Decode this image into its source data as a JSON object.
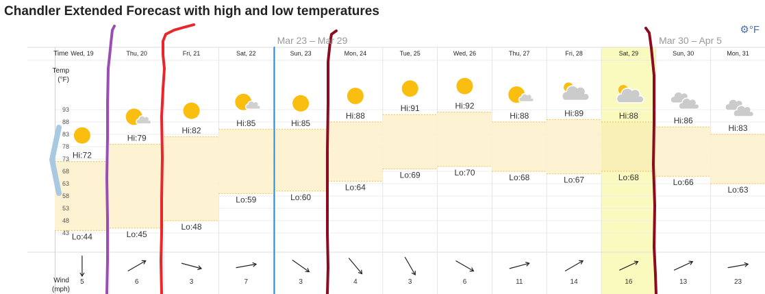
{
  "title": "Chandler Extended Forecast with high and low temperatures",
  "units_toggle": {
    "icon": "gear-icon",
    "label": "°F"
  },
  "side_arrow_icon": "chevron-left-icon",
  "week_labels": [
    "Mar 23 – Mar 29",
    "Mar 30 – Apr 5"
  ],
  "row_labels": {
    "time": "Time",
    "temp": "Temp",
    "temp_unit": "(°F)",
    "wind": "Wind",
    "wind_unit": "(mph)"
  },
  "colors": {
    "band": "#fdf2d0",
    "band_line": "#f0c040",
    "highlight": "#fafabf",
    "sun": "#f9be10",
    "cloud": "#c8c8c8",
    "purple_line": "#9b4db3",
    "red_line": "#e8262b",
    "blue_line": "#2d8ac9",
    "maroon_line": "#8a0c1e"
  },
  "chart_data": {
    "type": "area",
    "title": "Chandler Extended Forecast with high and low temperatures",
    "ylabel": "Temp (°F)",
    "ylim": [
      38,
      98
    ],
    "y_ticks": [
      93,
      88,
      83,
      78,
      73,
      68,
      63,
      58,
      53,
      48,
      43
    ],
    "highlighted_day": "Sat, 29",
    "days": [
      {
        "label": "Wed, 19",
        "hi": 72,
        "lo": 44,
        "hi_label": "Hi:72",
        "lo_label": "Lo:44",
        "icon": "sun-icon",
        "wind_dir": 180,
        "wind_speed": "5"
      },
      {
        "label": "Thu, 20",
        "hi": 79,
        "lo": 45,
        "hi_label": "Hi:79",
        "lo_label": "Lo:45",
        "icon": "sun-cloud-icon",
        "wind_dir": 60,
        "wind_speed": "6"
      },
      {
        "label": "Fri, 21",
        "hi": 82,
        "lo": 48,
        "hi_label": "Hi:82",
        "lo_label": "Lo:48",
        "icon": "sun-icon",
        "wind_dir": 105,
        "wind_speed": "3"
      },
      {
        "label": "Sat, 22",
        "hi": 85,
        "lo": 59,
        "hi_label": "Hi:85",
        "lo_label": "Lo:59",
        "icon": "sun-cloud-icon",
        "wind_dir": 80,
        "wind_speed": "7"
      },
      {
        "label": "Sun, 23",
        "hi": 85,
        "lo": 60,
        "hi_label": "Hi:85",
        "lo_label": "Lo:60",
        "icon": "sun-icon",
        "wind_dir": 125,
        "wind_speed": "3"
      },
      {
        "label": "Mon, 24",
        "hi": 88,
        "lo": 64,
        "hi_label": "Hi:88",
        "lo_label": "Lo:64",
        "icon": "sun-icon",
        "wind_dir": 140,
        "wind_speed": "4"
      },
      {
        "label": "Tue, 25",
        "hi": 91,
        "lo": 69,
        "hi_label": "Hi:91",
        "lo_label": "Lo:69",
        "icon": "sun-icon",
        "wind_dir": 150,
        "wind_speed": "3"
      },
      {
        "label": "Wed, 26",
        "hi": 92,
        "lo": 70,
        "hi_label": "Hi:92",
        "lo_label": "Lo:70",
        "icon": "sun-icon",
        "wind_dir": 120,
        "wind_speed": "6"
      },
      {
        "label": "Thu, 27",
        "hi": 88,
        "lo": 68,
        "hi_label": "Hi:88",
        "lo_label": "Lo:68",
        "icon": "sun-cloud-icon",
        "wind_dir": 75,
        "wind_speed": "11"
      },
      {
        "label": "Fri, 28",
        "hi": 89,
        "lo": 67,
        "hi_label": "Hi:89",
        "lo_label": "Lo:67",
        "icon": "cloud-sun-icon",
        "wind_dir": 60,
        "wind_speed": "14"
      },
      {
        "label": "Sat, 29",
        "hi": 88,
        "lo": 68,
        "hi_label": "Hi:88",
        "lo_label": "Lo:68",
        "icon": "cloud-sun-icon",
        "wind_dir": 65,
        "wind_speed": "16"
      },
      {
        "label": "Sun, 30",
        "hi": 86,
        "lo": 66,
        "hi_label": "Hi:86",
        "lo_label": "Lo:66",
        "icon": "cloud-icon",
        "wind_dir": 65,
        "wind_speed": "13"
      },
      {
        "label": "Mon, 31",
        "hi": 83,
        "lo": 63,
        "hi_label": "Hi:83",
        "lo_label": "Lo:63",
        "icon": "cloud-icon",
        "wind_dir": 80,
        "wind_speed": "23"
      }
    ]
  }
}
